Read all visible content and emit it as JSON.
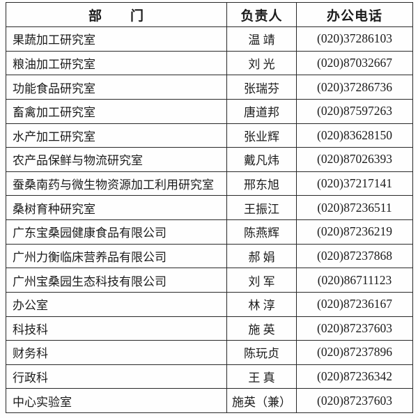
{
  "page": {
    "background_color": "#fefefe",
    "border_color": "#282828",
    "text_color": "#1b1b1b"
  },
  "table": {
    "headers": {
      "dept": "部　　门",
      "leader": "负责人",
      "phone": "办公电话"
    },
    "rows": [
      {
        "dept": "果蔬加工研究室",
        "leader": "温 靖",
        "phone": "(020)37286103"
      },
      {
        "dept": "粮油加工研究室",
        "leader": "刘 光",
        "phone": "(020)87032667"
      },
      {
        "dept": "功能食品研究室",
        "leader": "张瑞芬",
        "phone": "(020)37286736"
      },
      {
        "dept": "畜禽加工研究室",
        "leader": "唐道邦",
        "phone": "(020)87597263"
      },
      {
        "dept": "水产加工研究室",
        "leader": "张业辉",
        "phone": "(020)83628150"
      },
      {
        "dept": "农产品保鲜与物流研究室",
        "leader": "戴凡炜",
        "phone": "(020)87026393"
      },
      {
        "dept": "蚕桑南药与微生物资源加工利用研究室",
        "leader": "邢东旭",
        "phone": "(020)37217141"
      },
      {
        "dept": "桑树育种研究室",
        "leader": "王振江",
        "phone": "(020)87236511"
      },
      {
        "dept": "广东宝桑园健康食品有限公司",
        "leader": "陈燕辉",
        "phone": "(020)87236219"
      },
      {
        "dept": "广州力衡临床营养品有限公司",
        "leader": "郝 娟",
        "phone": "(020)87237868"
      },
      {
        "dept": "广州宝桑园生态科技有限公司",
        "leader": "刘 军",
        "phone": "(020)86711123"
      },
      {
        "dept": "办公室",
        "leader": "林 淳",
        "phone": "(020)87236167"
      },
      {
        "dept": "科技科",
        "leader": "施 英",
        "phone": "(020)87237603"
      },
      {
        "dept": "财务科",
        "leader": "陈玩贞",
        "phone": "(020)87237896"
      },
      {
        "dept": "行政科",
        "leader": "王 真",
        "phone": "(020)87236342"
      },
      {
        "dept": "中心实验室",
        "leader": "施英（兼）",
        "phone": "(020)87237603"
      }
    ]
  }
}
